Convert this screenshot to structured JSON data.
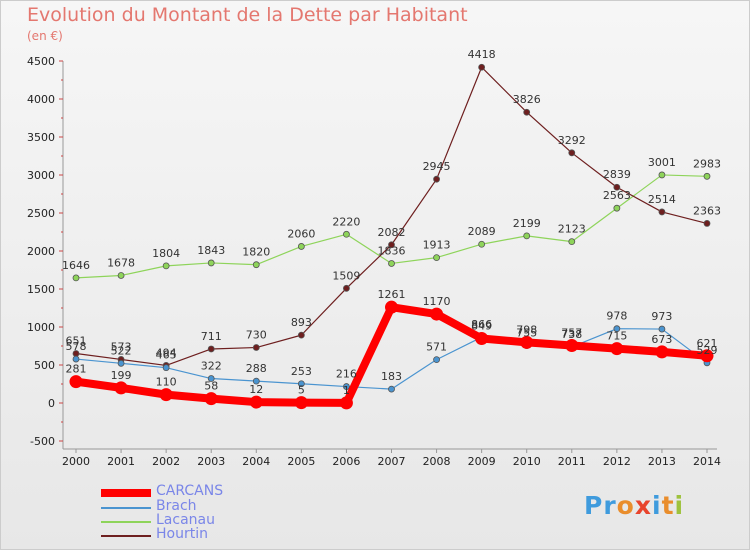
{
  "title": "Evolution du Montant de la Dette par Habitant",
  "unit_label": "(en €)",
  "logo": {
    "letters": [
      "P",
      "r",
      "o",
      "x",
      "i",
      "t",
      "i"
    ],
    "colors": [
      "#3f9bdd",
      "#3f9bdd",
      "#e98d2c",
      "#e8442c",
      "#3f9bdd",
      "#e98d2c",
      "#9ec23d"
    ]
  },
  "chart_data": {
    "type": "line",
    "title": "Evolution du Montant de la Dette par Habitant",
    "ylabel": "(en €)",
    "xlabel": "",
    "x": [
      2000,
      2001,
      2002,
      2003,
      2004,
      2005,
      2006,
      2007,
      2008,
      2009,
      2010,
      2011,
      2012,
      2013,
      2014
    ],
    "ylim": [
      -500,
      4500
    ],
    "yticks": [
      -500,
      0,
      500,
      1000,
      1500,
      2000,
      2500,
      3000,
      3500,
      4000,
      4500
    ],
    "grid": false,
    "legend_position": "bottom-left",
    "series": [
      {
        "name": "CARCANS",
        "color": "#ff0000",
        "values": [
          281,
          199,
          110,
          58,
          12,
          5,
          1,
          1261,
          1170,
          849,
          798,
          757,
          715,
          673,
          621
        ]
      },
      {
        "name": "Brach",
        "color": "#4a94d0",
        "values": [
          578,
          522,
          465,
          322,
          288,
          253,
          216,
          183,
          571,
          866,
          755,
          738,
          978,
          973,
          529
        ]
      },
      {
        "name": "Lacanau",
        "color": "#8ed45a",
        "values": [
          1646,
          1678,
          1804,
          1843,
          1820,
          2060,
          2220,
          1836,
          1913,
          2089,
          2199,
          2123,
          2563,
          3001,
          2983
        ]
      },
      {
        "name": "Hourtin",
        "color": "#6e1f1f",
        "values": [
          651,
          573,
          494,
          711,
          730,
          893,
          1509,
          2082,
          2945,
          4418,
          3826,
          3292,
          2839,
          2514,
          2363
        ]
      }
    ]
  }
}
